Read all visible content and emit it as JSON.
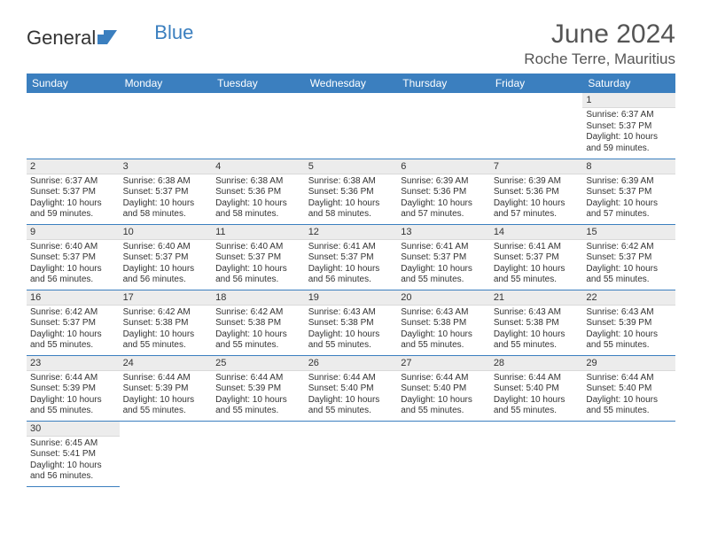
{
  "brand": {
    "part1": "General",
    "part2": "Blue"
  },
  "title": "June 2024",
  "location": "Roche Terre, Mauritius",
  "colors": {
    "header_bg": "#3b7fbf",
    "header_text": "#ffffff",
    "daynum_bg": "#ececec",
    "cell_border": "#3b7fbf",
    "text": "#333333"
  },
  "weekdays": [
    "Sunday",
    "Monday",
    "Tuesday",
    "Wednesday",
    "Thursday",
    "Friday",
    "Saturday"
  ],
  "first_weekday_index": 6,
  "days": [
    {
      "n": 1,
      "sunrise": "6:37 AM",
      "sunset": "5:37 PM",
      "daylight": "10 hours and 59 minutes."
    },
    {
      "n": 2,
      "sunrise": "6:37 AM",
      "sunset": "5:37 PM",
      "daylight": "10 hours and 59 minutes."
    },
    {
      "n": 3,
      "sunrise": "6:38 AM",
      "sunset": "5:37 PM",
      "daylight": "10 hours and 58 minutes."
    },
    {
      "n": 4,
      "sunrise": "6:38 AM",
      "sunset": "5:36 PM",
      "daylight": "10 hours and 58 minutes."
    },
    {
      "n": 5,
      "sunrise": "6:38 AM",
      "sunset": "5:36 PM",
      "daylight": "10 hours and 58 minutes."
    },
    {
      "n": 6,
      "sunrise": "6:39 AM",
      "sunset": "5:36 PM",
      "daylight": "10 hours and 57 minutes."
    },
    {
      "n": 7,
      "sunrise": "6:39 AM",
      "sunset": "5:36 PM",
      "daylight": "10 hours and 57 minutes."
    },
    {
      "n": 8,
      "sunrise": "6:39 AM",
      "sunset": "5:37 PM",
      "daylight": "10 hours and 57 minutes."
    },
    {
      "n": 9,
      "sunrise": "6:40 AM",
      "sunset": "5:37 PM",
      "daylight": "10 hours and 56 minutes."
    },
    {
      "n": 10,
      "sunrise": "6:40 AM",
      "sunset": "5:37 PM",
      "daylight": "10 hours and 56 minutes."
    },
    {
      "n": 11,
      "sunrise": "6:40 AM",
      "sunset": "5:37 PM",
      "daylight": "10 hours and 56 minutes."
    },
    {
      "n": 12,
      "sunrise": "6:41 AM",
      "sunset": "5:37 PM",
      "daylight": "10 hours and 56 minutes."
    },
    {
      "n": 13,
      "sunrise": "6:41 AM",
      "sunset": "5:37 PM",
      "daylight": "10 hours and 55 minutes."
    },
    {
      "n": 14,
      "sunrise": "6:41 AM",
      "sunset": "5:37 PM",
      "daylight": "10 hours and 55 minutes."
    },
    {
      "n": 15,
      "sunrise": "6:42 AM",
      "sunset": "5:37 PM",
      "daylight": "10 hours and 55 minutes."
    },
    {
      "n": 16,
      "sunrise": "6:42 AM",
      "sunset": "5:37 PM",
      "daylight": "10 hours and 55 minutes."
    },
    {
      "n": 17,
      "sunrise": "6:42 AM",
      "sunset": "5:38 PM",
      "daylight": "10 hours and 55 minutes."
    },
    {
      "n": 18,
      "sunrise": "6:42 AM",
      "sunset": "5:38 PM",
      "daylight": "10 hours and 55 minutes."
    },
    {
      "n": 19,
      "sunrise": "6:43 AM",
      "sunset": "5:38 PM",
      "daylight": "10 hours and 55 minutes."
    },
    {
      "n": 20,
      "sunrise": "6:43 AM",
      "sunset": "5:38 PM",
      "daylight": "10 hours and 55 minutes."
    },
    {
      "n": 21,
      "sunrise": "6:43 AM",
      "sunset": "5:38 PM",
      "daylight": "10 hours and 55 minutes."
    },
    {
      "n": 22,
      "sunrise": "6:43 AM",
      "sunset": "5:39 PM",
      "daylight": "10 hours and 55 minutes."
    },
    {
      "n": 23,
      "sunrise": "6:44 AM",
      "sunset": "5:39 PM",
      "daylight": "10 hours and 55 minutes."
    },
    {
      "n": 24,
      "sunrise": "6:44 AM",
      "sunset": "5:39 PM",
      "daylight": "10 hours and 55 minutes."
    },
    {
      "n": 25,
      "sunrise": "6:44 AM",
      "sunset": "5:39 PM",
      "daylight": "10 hours and 55 minutes."
    },
    {
      "n": 26,
      "sunrise": "6:44 AM",
      "sunset": "5:40 PM",
      "daylight": "10 hours and 55 minutes."
    },
    {
      "n": 27,
      "sunrise": "6:44 AM",
      "sunset": "5:40 PM",
      "daylight": "10 hours and 55 minutes."
    },
    {
      "n": 28,
      "sunrise": "6:44 AM",
      "sunset": "5:40 PM",
      "daylight": "10 hours and 55 minutes."
    },
    {
      "n": 29,
      "sunrise": "6:44 AM",
      "sunset": "5:40 PM",
      "daylight": "10 hours and 55 minutes."
    },
    {
      "n": 30,
      "sunrise": "6:45 AM",
      "sunset": "5:41 PM",
      "daylight": "10 hours and 56 minutes."
    }
  ],
  "labels": {
    "sunrise": "Sunrise:",
    "sunset": "Sunset:",
    "daylight": "Daylight:"
  }
}
